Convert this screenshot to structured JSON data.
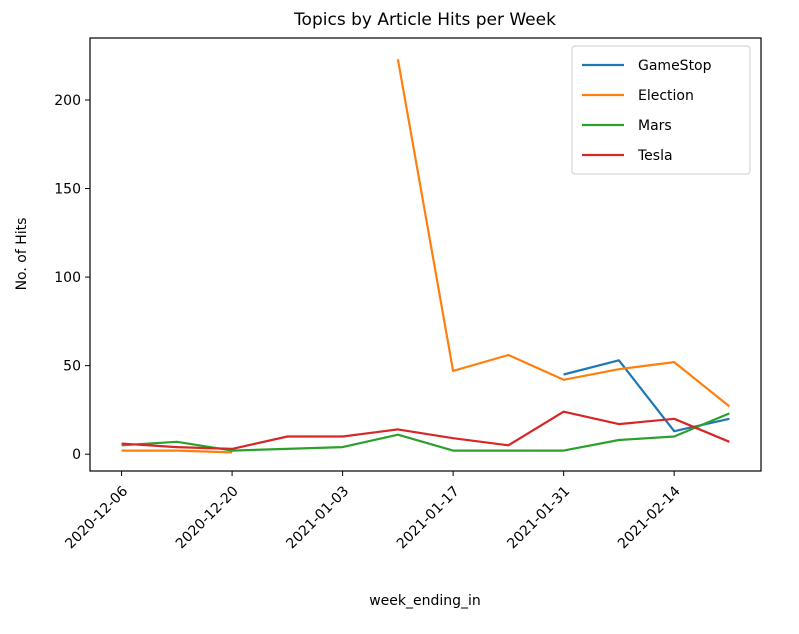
{
  "chart_data": {
    "type": "line",
    "title": "Topics by Article Hits per Week",
    "xlabel": "week_ending_in",
    "ylabel": "No. of Hits",
    "ylim": [
      -9.5,
      235
    ],
    "yticks": [
      0,
      50,
      100,
      150,
      200
    ],
    "xlim": [
      "2020-12-02",
      "2021-02-25"
    ],
    "xticks": [
      "2020-12-06",
      "2020-12-20",
      "2021-01-03",
      "2021-01-17",
      "2021-01-31",
      "2021-02-14"
    ],
    "grid": false,
    "legend_position": "top-right",
    "series": [
      {
        "name": "GameStop",
        "color": "#1f77b4",
        "points": [
          {
            "x": "2021-01-31",
            "y": 45
          },
          {
            "x": "2021-02-07",
            "y": 53
          },
          {
            "x": "2021-02-14",
            "y": 13
          },
          {
            "x": "2021-02-21",
            "y": 20
          }
        ]
      },
      {
        "name": "Election",
        "color": "#ff7f0e",
        "segments": [
          [
            {
              "x": "2020-12-06",
              "y": 2
            },
            {
              "x": "2020-12-13",
              "y": 2
            },
            {
              "x": "2020-12-20",
              "y": 1
            }
          ],
          [
            {
              "x": "2021-01-10",
              "y": 223
            },
            {
              "x": "2021-01-17",
              "y": 47
            },
            {
              "x": "2021-01-24",
              "y": 56
            },
            {
              "x": "2021-01-31",
              "y": 42
            },
            {
              "x": "2021-02-07",
              "y": 48
            },
            {
              "x": "2021-02-14",
              "y": 52
            },
            {
              "x": "2021-02-21",
              "y": 27
            }
          ]
        ]
      },
      {
        "name": "Mars",
        "color": "#2ca02c",
        "points": [
          {
            "x": "2020-12-06",
            "y": 5
          },
          {
            "x": "2020-12-13",
            "y": 7
          },
          {
            "x": "2020-12-20",
            "y": 2
          },
          {
            "x": "2021-01-03",
            "y": 4
          },
          {
            "x": "2021-01-10",
            "y": 11
          },
          {
            "x": "2021-01-17",
            "y": 2
          },
          {
            "x": "2021-01-24",
            "y": 2
          },
          {
            "x": "2021-01-31",
            "y": 2
          },
          {
            "x": "2021-02-07",
            "y": 8
          },
          {
            "x": "2021-02-14",
            "y": 10
          },
          {
            "x": "2021-02-21",
            "y": 23
          }
        ]
      },
      {
        "name": "Tesla",
        "color": "#d62728",
        "points": [
          {
            "x": "2020-12-06",
            "y": 6
          },
          {
            "x": "2020-12-13",
            "y": 4
          },
          {
            "x": "2020-12-20",
            "y": 3
          },
          {
            "x": "2020-12-27",
            "y": 10
          },
          {
            "x": "2021-01-03",
            "y": 10
          },
          {
            "x": "2021-01-10",
            "y": 14
          },
          {
            "x": "2021-01-17",
            "y": 9
          },
          {
            "x": "2021-01-24",
            "y": 5
          },
          {
            "x": "2021-01-31",
            "y": 24
          },
          {
            "x": "2021-02-07",
            "y": 17
          },
          {
            "x": "2021-02-14",
            "y": 20
          },
          {
            "x": "2021-02-21",
            "y": 7
          }
        ]
      }
    ]
  }
}
